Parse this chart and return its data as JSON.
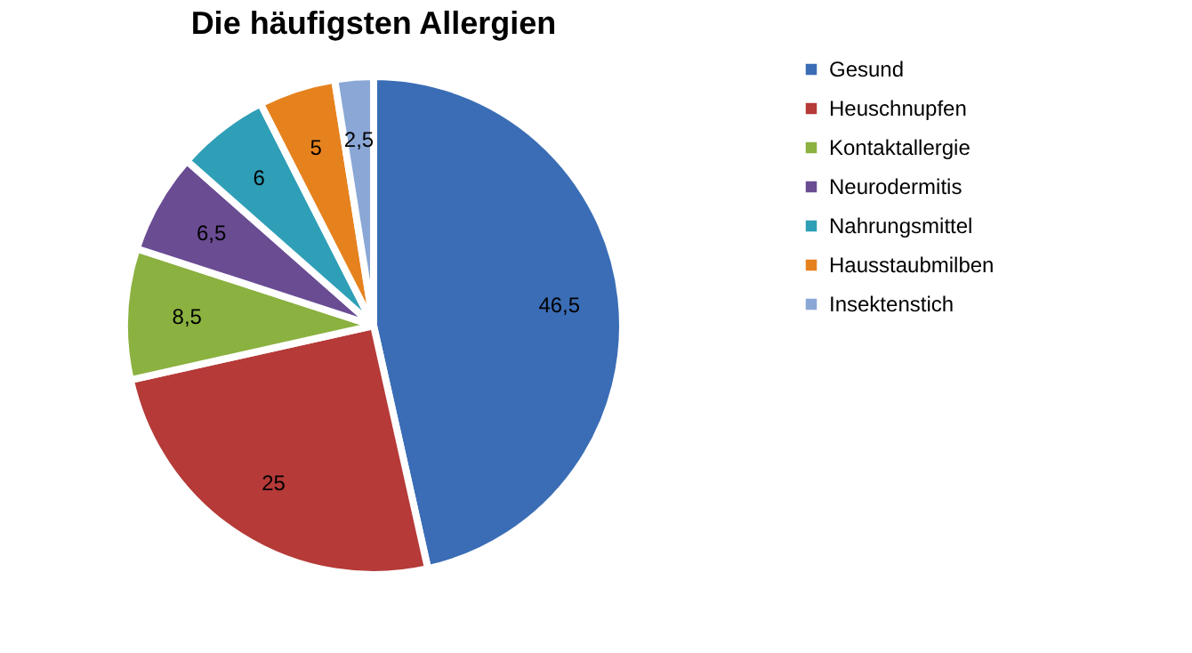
{
  "chart_data": {
    "type": "pie",
    "title": "Die häufigsten Allergien",
    "categories": [
      "Gesund",
      "Heuschnupfen",
      "Kontaktallergie",
      "Neurodermitis",
      "Nahrungsmittel",
      "Hausstaubmilben",
      "Insektenstich"
    ],
    "values": [
      46.5,
      25,
      8.5,
      6.5,
      6,
      5,
      2.5
    ],
    "value_labels": [
      "46,5",
      "25",
      "8,5",
      "6,5",
      "6",
      "5",
      "2,5"
    ],
    "colors": [
      "#3a6db5",
      "#b53a38",
      "#8bb140",
      "#6a4c93",
      "#2f9fb7",
      "#e6821e",
      "#8aa7d6"
    ],
    "legend": "right"
  }
}
